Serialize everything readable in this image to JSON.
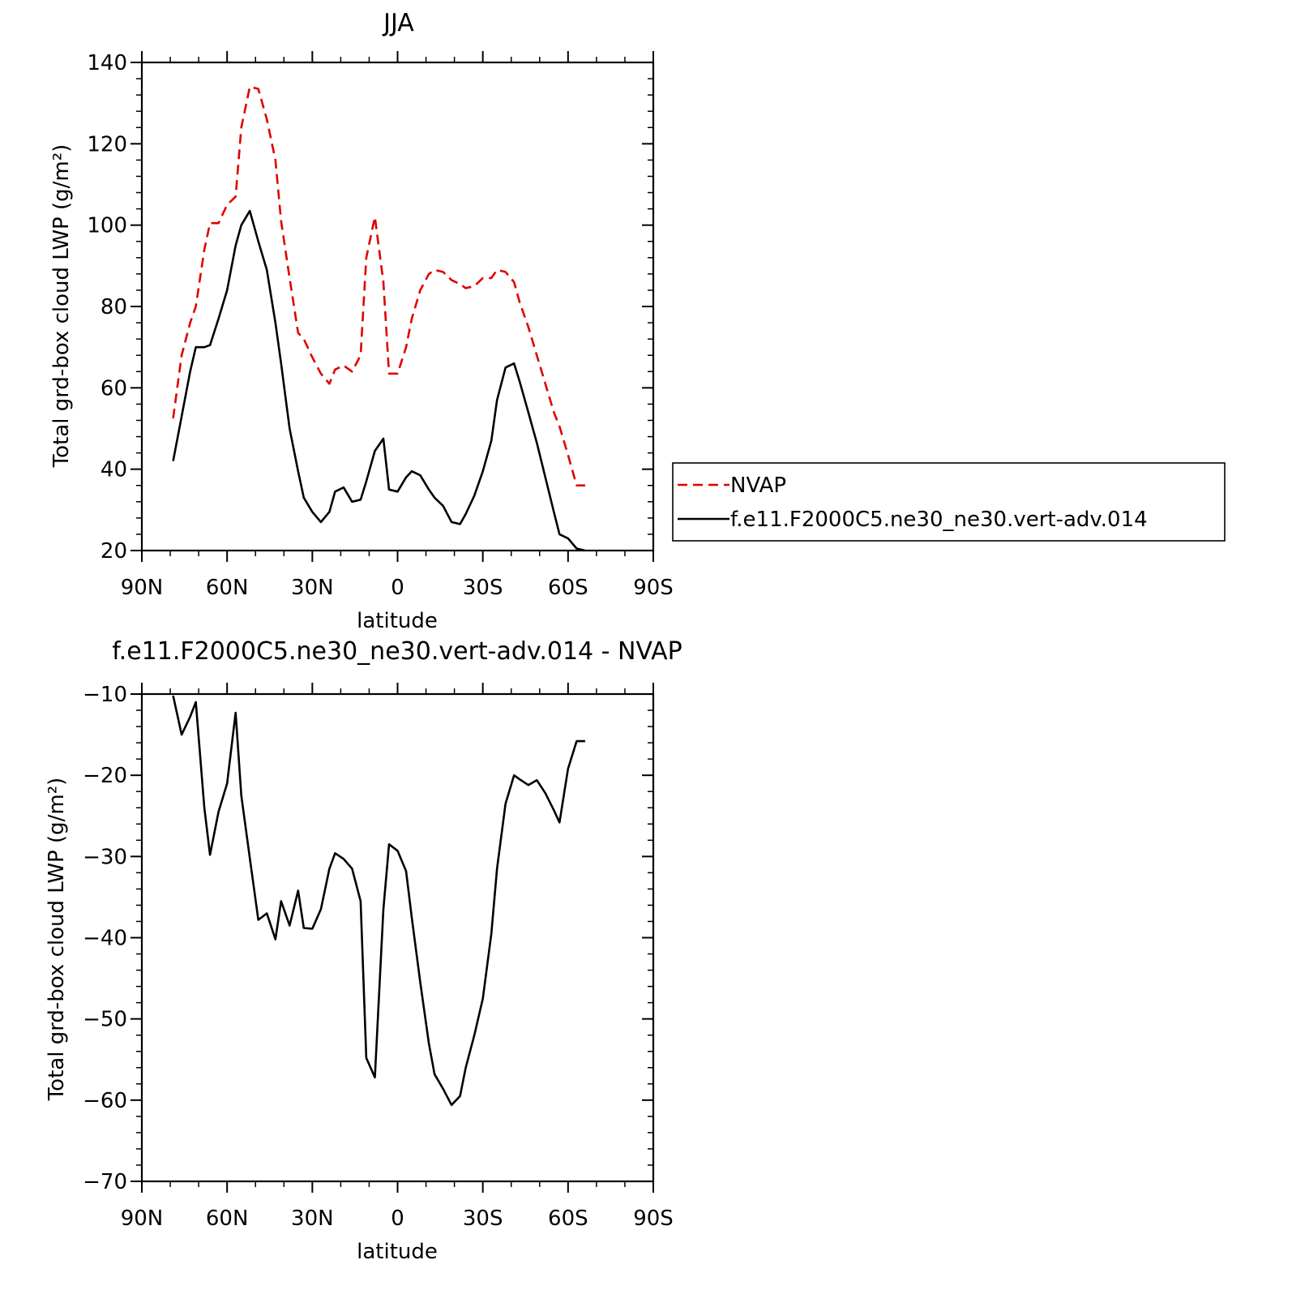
{
  "chart_data": [
    {
      "type": "line",
      "title": "JJA",
      "xlabel": "latitude",
      "ylabel": "Total grd-box cloud LWP (g/m²)",
      "xlim": [
        90,
        -90
      ],
      "ylim": [
        20,
        140
      ],
      "xticks": [
        {
          "value": 90,
          "label": "90N"
        },
        {
          "value": 60,
          "label": "60N"
        },
        {
          "value": 30,
          "label": "30N"
        },
        {
          "value": 0,
          "label": "0"
        },
        {
          "value": -30,
          "label": "30S"
        },
        {
          "value": -60,
          "label": "60S"
        },
        {
          "value": -90,
          "label": "90S"
        }
      ],
      "yticks": [
        20,
        40,
        60,
        80,
        100,
        120,
        140
      ],
      "legend_position": "right",
      "series": [
        {
          "name": "NVAP",
          "color": "#e00000",
          "dash": true,
          "x": [
            79,
            76,
            73,
            71,
            68,
            66,
            63,
            60,
            57,
            55,
            52,
            49,
            46,
            43,
            41,
            38,
            35,
            33,
            30,
            27,
            24,
            22,
            19,
            16,
            13,
            11,
            8,
            5,
            3,
            0,
            -3,
            -5,
            -8,
            -11,
            -13,
            -16,
            -19,
            -22,
            -24,
            -27,
            -30,
            -33,
            -35,
            -38,
            -41,
            -43,
            -46,
            -49,
            -52,
            -55,
            -57,
            -60,
            -63,
            -66
          ],
          "y": [
            52.5,
            68,
            76,
            80,
            94,
            100.5,
            100.5,
            105,
            107,
            124,
            134,
            133.5,
            126,
            116,
            101,
            87,
            73.5,
            72,
            67.5,
            63.5,
            61,
            64.5,
            65.5,
            64,
            68,
            92,
            102,
            86,
            63.5,
            63.5,
            70,
            77,
            84,
            88,
            89,
            88.5,
            86.5,
            85.5,
            84.5,
            85,
            87,
            87,
            89,
            88.5,
            86,
            81,
            75,
            68,
            61,
            54,
            50.5,
            43.5,
            36,
            36
          ]
        },
        {
          "name": "f.e11.F2000C5.ne30_ne30.vert-adv.014",
          "color": "#000000",
          "dash": false,
          "x": [
            79,
            76,
            73,
            71,
            68,
            66,
            63,
            60,
            57,
            55,
            52,
            49,
            46,
            43,
            41,
            38,
            35,
            33,
            30,
            27,
            24,
            22,
            19,
            16,
            13,
            11,
            8,
            5,
            3,
            0,
            -3,
            -5,
            -8,
            -11,
            -13,
            -16,
            -19,
            -22,
            -24,
            -27,
            -30,
            -33,
            -35,
            -38,
            -41,
            -43,
            -46,
            -49,
            -52,
            -55,
            -57,
            -60,
            -63,
            -66
          ],
          "y": [
            42,
            53,
            64,
            70,
            70,
            70.5,
            77,
            84,
            95,
            100,
            103.5,
            96,
            89,
            76,
            66,
            50,
            39.5,
            33,
            29.5,
            27,
            29.5,
            34.5,
            35.5,
            32,
            32.5,
            37,
            44.5,
            47.5,
            35,
            34.5,
            38,
            39.5,
            38.5,
            35,
            33,
            31,
            27,
            26.5,
            29,
            33.5,
            39.5,
            47,
            57,
            65,
            66,
            61.5,
            54,
            46.5,
            38,
            29.5,
            24,
            23,
            20.5,
            20
          ]
        }
      ]
    },
    {
      "type": "line",
      "title": "f.e11.F2000C5.ne30_ne30.vert-adv.014 - NVAP",
      "xlabel": "latitude",
      "ylabel": "Total grd-box cloud LWP (g/m²)",
      "xlim": [
        90,
        -90
      ],
      "ylim": [
        -70,
        -10
      ],
      "xticks": [
        {
          "value": 90,
          "label": "90N"
        },
        {
          "value": 60,
          "label": "60N"
        },
        {
          "value": 30,
          "label": "30N"
        },
        {
          "value": 0,
          "label": "0"
        },
        {
          "value": -30,
          "label": "30S"
        },
        {
          "value": -60,
          "label": "60S"
        },
        {
          "value": -90,
          "label": "90S"
        }
      ],
      "yticks": [
        -70,
        -60,
        -50,
        -40,
        -30,
        -20,
        -10
      ],
      "series": [
        {
          "color": "#000000",
          "dash": false,
          "x": [
            79,
            76,
            73,
            71,
            68,
            66,
            63,
            60,
            57,
            55,
            52,
            49,
            46,
            43,
            41,
            38,
            35,
            33,
            30,
            27,
            24,
            22,
            19,
            16,
            13,
            11,
            8,
            5,
            3,
            0,
            -3,
            -5,
            -8,
            -11,
            -13,
            -16,
            -19,
            -22,
            -24,
            -27,
            -30,
            -33,
            -35,
            -38,
            -41,
            -43,
            -46,
            -49,
            -52,
            -55,
            -57,
            -60,
            -63,
            -66
          ],
          "y": [
            -10.2,
            -15,
            -12.8,
            -11,
            -24,
            -29.8,
            -24.5,
            -21,
            -12.3,
            -22.5,
            -30.2,
            -37.8,
            -37,
            -40.2,
            -35.5,
            -38.5,
            -34.2,
            -38.8,
            -38.9,
            -36.5,
            -31.5,
            -29.6,
            -30.3,
            -31.5,
            -35.5,
            -54.8,
            -57.2,
            -36.5,
            -28.5,
            -29.3,
            -31.8,
            -37.5,
            -45.5,
            -53,
            -56.8,
            -58.6,
            -60.6,
            -59.5,
            -56,
            -52,
            -47.5,
            -39.5,
            -31.5,
            -23.5,
            -20,
            -20.5,
            -21.2,
            -20.6,
            -22.2,
            -24.3,
            -25.8,
            -19.2,
            -15.8,
            -15.8
          ]
        }
      ]
    }
  ]
}
